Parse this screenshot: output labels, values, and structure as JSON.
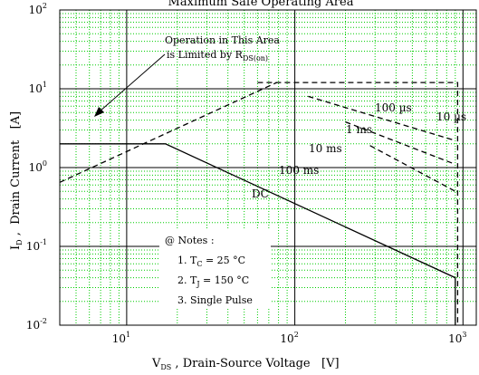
{
  "chart_data": {
    "type": "line",
    "title": "Maximum Safe Operating Area",
    "xlabel": {
      "prefix": "V",
      "sub": "DS",
      "text": " , Drain-Source Voltage   [V]"
    },
    "ylabel": {
      "prefix": "I",
      "sub": "D",
      "text": " ,  Drain Current   [A]"
    },
    "x_scale": "log",
    "y_scale": "log",
    "xlim": [
      4,
      1200
    ],
    "ylim": [
      0.01,
      100
    ],
    "grid": true,
    "x_ticks": [
      {
        "base": "10",
        "exp": "1"
      },
      {
        "base": "10",
        "exp": "2"
      },
      {
        "base": "10",
        "exp": "3"
      }
    ],
    "y_ticks": [
      {
        "base": "10",
        "exp": "-2"
      },
      {
        "base": "10",
        "exp": "-1"
      },
      {
        "base": "10",
        "exp": "0"
      },
      {
        "base": "10",
        "exp": "1"
      },
      {
        "base": "10",
        "exp": "2"
      }
    ],
    "series": [
      {
        "name": "DC",
        "style": "solid",
        "points": [
          [
            4,
            2
          ],
          [
            17,
            2
          ],
          [
            900,
            0.04
          ],
          [
            900,
            0.01
          ]
        ]
      },
      {
        "name": "10 ms",
        "style": "dashed",
        "points": [
          [
            280,
            1.9
          ],
          [
            900,
            0.5
          ]
        ]
      },
      {
        "name": "1 ms",
        "style": "dashed",
        "points": [
          [
            200,
            3.8
          ],
          [
            900,
            1.1
          ]
        ]
      },
      {
        "name": "100 µs",
        "style": "dashed",
        "points": [
          [
            120,
            8
          ],
          [
            900,
            2.2
          ]
        ]
      },
      {
        "name": "10 µs",
        "style": "dashed",
        "points": [
          [
            60,
            12
          ],
          [
            930,
            12
          ],
          [
            930,
            0.01
          ]
        ]
      },
      {
        "name": "RDS(on) limit",
        "style": "dashed",
        "points": [
          [
            4,
            0.65
          ],
          [
            78,
            12
          ]
        ]
      }
    ],
    "curve_labels": [
      "10 µs",
      "100 µs",
      "1 ms",
      "10 ms",
      "100 ms",
      "DC"
    ],
    "annotation": {
      "line1": "Operation in This Area",
      "line2": "is Limited by R",
      "line2_sub": "DS(on)"
    },
    "notes": {
      "header": "@ Notes :",
      "items": [
        {
          "prefix": "1. T",
          "sub": "C",
          "suffix": " = 25 °C"
        },
        {
          "prefix": "2. T",
          "sub": "J",
          "suffix": " = 150 °C"
        },
        {
          "prefix": "3. Single Pulse",
          "sub": "",
          "suffix": ""
        }
      ]
    },
    "colors": {
      "grid": "#00cc00",
      "axes": "#000000",
      "background": "#ffffff"
    }
  }
}
